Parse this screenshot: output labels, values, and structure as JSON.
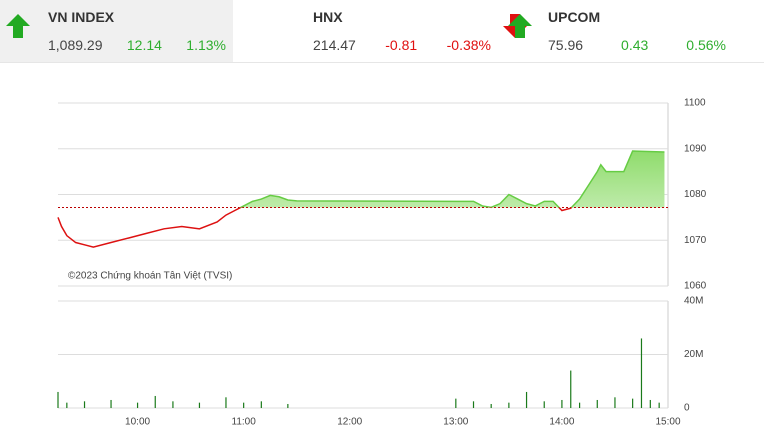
{
  "indices": [
    {
      "name": "VN INDEX",
      "value": "1,089.29",
      "change": "12.14",
      "pct": "1.13%",
      "direction": "up"
    },
    {
      "name": "HNX",
      "value": "214.47",
      "change": "-0.81",
      "pct": "-0.38%",
      "direction": "down"
    },
    {
      "name": "UPCOM",
      "value": "75.96",
      "change": "0.43",
      "pct": "0.56%",
      "direction": "up"
    }
  ],
  "chart_data": [
    {
      "type": "line",
      "watermark": "©2023 Chứng khoán Tân Việt (TVSI)",
      "x": [
        "09:15",
        "09:17",
        "09:20",
        "09:25",
        "09:30",
        "09:35",
        "09:45",
        "09:55",
        "10:05",
        "10:15",
        "10:25",
        "10:35",
        "10:45",
        "10:50",
        "10:55",
        "11:00",
        "11:05",
        "11:10",
        "11:15",
        "11:20",
        "11:25",
        "11:30",
        "13:00",
        "13:10",
        "13:15",
        "13:20",
        "13:25",
        "13:30",
        "13:35",
        "13:40",
        "13:45",
        "13:50",
        "13:55",
        "14:00",
        "14:05",
        "14:10",
        "14:15",
        "14:20",
        "14:22",
        "14:25",
        "14:35",
        "14:40",
        "14:58"
      ],
      "values": [
        1075,
        1073,
        1071,
        1069.5,
        1069,
        1068.5,
        1069.5,
        1070.5,
        1071.5,
        1072.5,
        1073,
        1072.5,
        1074,
        1075.5,
        1076.5,
        1077.5,
        1078.5,
        1079,
        1079.8,
        1079.5,
        1078.8,
        1078.6,
        1078.5,
        1078.5,
        1077.5,
        1077.2,
        1078,
        1080,
        1079,
        1078,
        1077.5,
        1078.5,
        1078.5,
        1076.5,
        1077,
        1079,
        1082,
        1085,
        1086.5,
        1085,
        1085,
        1089.5,
        1089.29
      ],
      "reference": 1077.15,
      "up_color": "#66cc44",
      "down_color": "#dd1111",
      "xlim": [
        "09:15",
        "15:00"
      ],
      "ylim": [
        1060,
        1100
      ],
      "yticks": [
        1060,
        1070,
        1080,
        1090,
        1100
      ],
      "grid": true
    },
    {
      "type": "bar",
      "color": "#1a7a1a",
      "x": [
        "09:15",
        "09:20",
        "09:30",
        "09:45",
        "10:00",
        "10:10",
        "10:20",
        "10:35",
        "10:50",
        "11:00",
        "11:10",
        "11:25",
        "13:00",
        "13:10",
        "13:20",
        "13:30",
        "13:40",
        "13:50",
        "14:00",
        "14:05",
        "14:10",
        "14:20",
        "14:30",
        "14:40",
        "14:45",
        "14:50",
        "14:55"
      ],
      "values": [
        6000000,
        2000000,
        2500000,
        3000000,
        2000000,
        4500000,
        2500000,
        2000000,
        4000000,
        2000000,
        2500000,
        1500000,
        3500000,
        2500000,
        1500000,
        2000000,
        6000000,
        2500000,
        3000000,
        14000000,
        2000000,
        3000000,
        4000000,
        3500000,
        26000000,
        3000000,
        2000000
      ],
      "xlim": [
        "09:15",
        "15:00"
      ],
      "xticks": [
        "10:00",
        "11:00",
        "12:00",
        "13:00",
        "14:00",
        "15:00"
      ],
      "ylim": [
        0,
        40000000
      ],
      "yticks": [
        0,
        {
          "value": 20000000,
          "label": "20M"
        },
        {
          "value": 40000000,
          "label": "40M"
        }
      ],
      "grid": true
    }
  ]
}
